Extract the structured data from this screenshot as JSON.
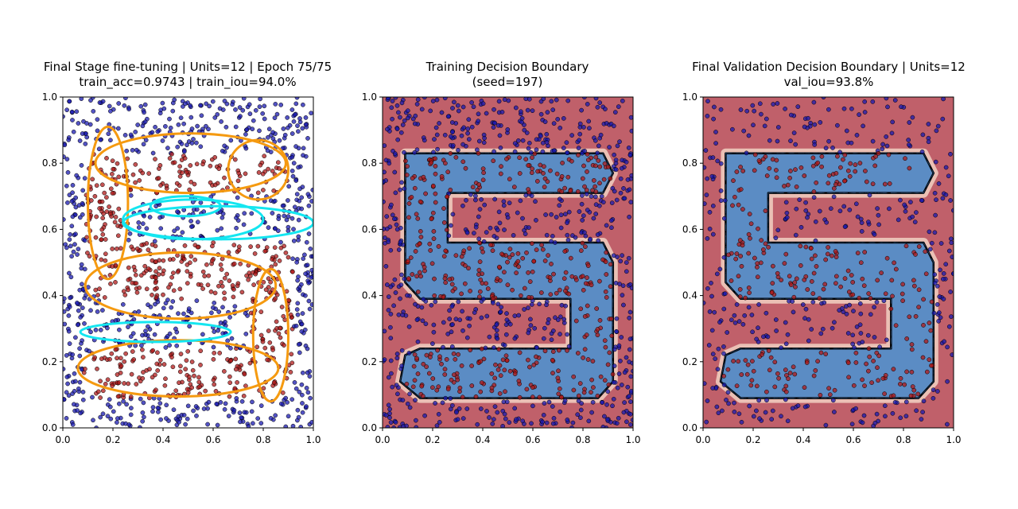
{
  "figure": {
    "background": "#ffffff"
  },
  "colors": {
    "class0_point": "#1a1ab0",
    "class1_point": "#b01a1a",
    "point_edge": "#000000",
    "orange_ellipse": "#f59a10",
    "cyan_ellipse": "#14e6f0",
    "region_outside": "#c0606a",
    "region_inside": "#5b8cc4",
    "boundary": "#000000"
  },
  "chart_data": [
    {
      "type": "scatter",
      "title_line1": "Final Stage fine-tuning | Units=12 | Epoch 75/75",
      "title_line2": "train_acc=0.9743 | train_iou=94.0%",
      "xlim": [
        0.0,
        1.0
      ],
      "ylim": [
        0.0,
        1.0
      ],
      "xticks": [
        "0.0",
        "0.2",
        "0.4",
        "0.6",
        "0.8",
        "1.0"
      ],
      "yticks": [
        "0.0",
        "0.2",
        "0.4",
        "0.6",
        "0.8",
        "1.0"
      ],
      "series": [],
      "ellipses": [
        {
          "color": "orange",
          "cx": 0.51,
          "cy": 0.8,
          "rx": 0.38,
          "ry": 0.09,
          "angle": 0
        },
        {
          "color": "orange",
          "cx": 0.78,
          "cy": 0.78,
          "rx": 0.12,
          "ry": 0.09,
          "angle": 0
        },
        {
          "color": "orange",
          "cx": 0.18,
          "cy": 0.68,
          "rx": 0.08,
          "ry": 0.23,
          "angle": 0
        },
        {
          "color": "orange",
          "cx": 0.47,
          "cy": 0.43,
          "rx": 0.38,
          "ry": 0.1,
          "angle": 0
        },
        {
          "color": "orange",
          "cx": 0.83,
          "cy": 0.28,
          "rx": 0.07,
          "ry": 0.2,
          "angle": 0
        },
        {
          "color": "orange",
          "cx": 0.46,
          "cy": 0.18,
          "rx": 0.4,
          "ry": 0.085,
          "angle": 0
        },
        {
          "color": "cyan",
          "cx": 0.52,
          "cy": 0.63,
          "rx": 0.28,
          "ry": 0.06,
          "angle": 0
        },
        {
          "color": "cyan",
          "cx": 0.62,
          "cy": 0.62,
          "rx": 0.38,
          "ry": 0.05,
          "angle": 0
        },
        {
          "color": "cyan",
          "cx": 0.49,
          "cy": 0.67,
          "rx": 0.14,
          "ry": 0.03,
          "angle": 0
        },
        {
          "color": "cyan",
          "cx": 0.37,
          "cy": 0.29,
          "rx": 0.3,
          "ry": 0.03,
          "angle": 0
        }
      ]
    },
    {
      "type": "scatter",
      "title_line1": "Training Decision Boundary",
      "title_line2": "(seed=197)",
      "xlim": [
        0.0,
        1.0
      ],
      "ylim": [
        0.0,
        1.0
      ],
      "xticks": [
        "0.0",
        "0.2",
        "0.4",
        "0.6",
        "0.8",
        "1.0"
      ],
      "yticks": [
        "0.0",
        "0.2",
        "0.4",
        "0.6",
        "0.8",
        "1.0"
      ],
      "series": []
    },
    {
      "type": "scatter",
      "title_line1": "Final Validation Decision Boundary | Units=12",
      "title_line2": "val_iou=93.8%",
      "xlim": [
        0.0,
        1.0
      ],
      "ylim": [
        0.0,
        1.0
      ],
      "xticks": [
        "0.0",
        "0.2",
        "0.4",
        "0.6",
        "0.8",
        "1.0"
      ],
      "yticks": [
        "0.0",
        "0.2",
        "0.4",
        "0.6",
        "0.8",
        "1.0"
      ],
      "series": []
    }
  ]
}
